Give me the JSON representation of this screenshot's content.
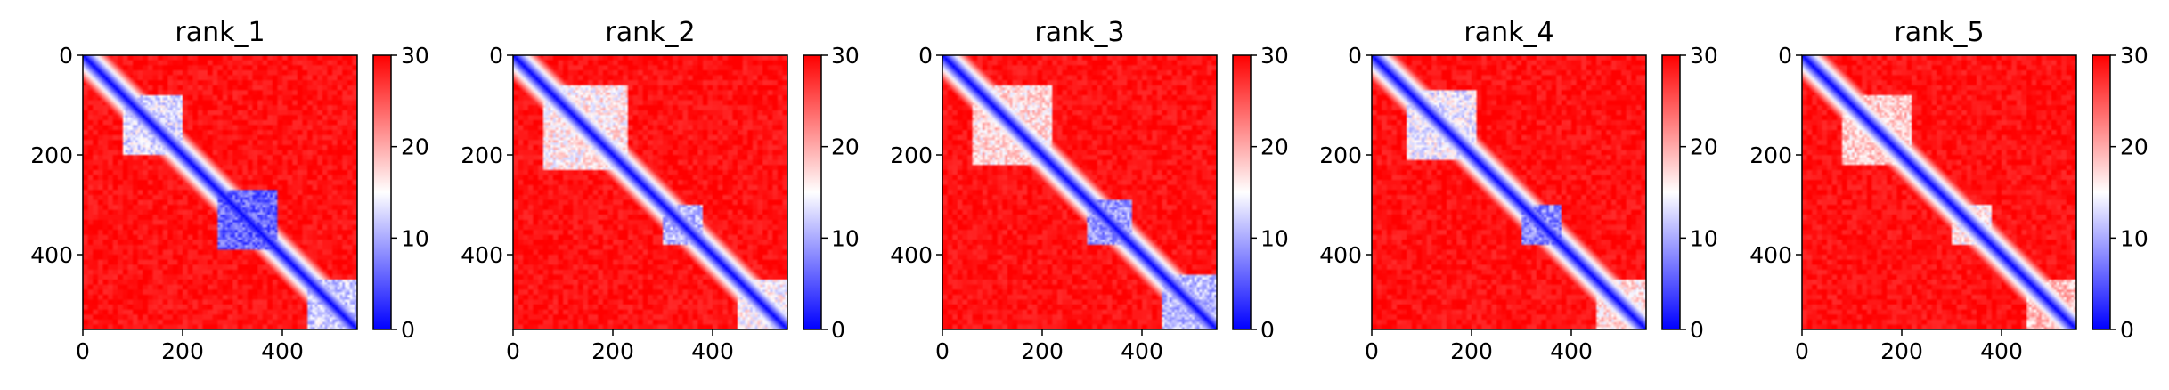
{
  "chart_data": [
    {
      "type": "heatmap",
      "title": "rank_1",
      "xlim": [
        0,
        550
      ],
      "ylim": [
        550,
        0
      ],
      "xticks": [
        "0",
        "200",
        "400"
      ],
      "yticks": [
        "0",
        "200",
        "400"
      ],
      "colorbar": {
        "ticks": [
          "0",
          "10",
          "20",
          "30"
        ],
        "range": [
          0,
          30
        ],
        "colormap": "bwr"
      },
      "features": [
        {
          "from": 80,
          "to": 200,
          "value": 13
        },
        {
          "from": 270,
          "to": 390,
          "value": 6
        },
        {
          "from": 450,
          "to": 550,
          "value": 12
        }
      ]
    },
    {
      "type": "heatmap",
      "title": "rank_2",
      "xlim": [
        0,
        550
      ],
      "ylim": [
        550,
        0
      ],
      "xticks": [
        "0",
        "200",
        "400"
      ],
      "yticks": [
        "0",
        "200",
        "400"
      ],
      "colorbar": {
        "ticks": [
          "0",
          "10",
          "20",
          "30"
        ],
        "range": [
          0,
          30
        ],
        "colormap": "bwr"
      },
      "features": [
        {
          "from": 60,
          "to": 230,
          "value": 16
        },
        {
          "from": 300,
          "to": 380,
          "value": 11
        },
        {
          "from": 450,
          "to": 550,
          "value": 15
        }
      ]
    },
    {
      "type": "heatmap",
      "title": "rank_3",
      "xlim": [
        0,
        550
      ],
      "ylim": [
        550,
        0
      ],
      "xticks": [
        "0",
        "200",
        "400"
      ],
      "yticks": [
        "0",
        "200",
        "400"
      ],
      "colorbar": {
        "ticks": [
          "0",
          "10",
          "20",
          "30"
        ],
        "range": [
          0,
          30
        ],
        "colormap": "bwr"
      },
      "features": [
        {
          "from": 60,
          "to": 220,
          "value": 17
        },
        {
          "from": 290,
          "to": 380,
          "value": 9
        },
        {
          "from": 440,
          "to": 550,
          "value": 11
        }
      ]
    },
    {
      "type": "heatmap",
      "title": "rank_4",
      "xlim": [
        0,
        550
      ],
      "ylim": [
        550,
        0
      ],
      "xticks": [
        "0",
        "200",
        "400"
      ],
      "yticks": [
        "0",
        "200",
        "400"
      ],
      "colorbar": {
        "ticks": [
          "0",
          "10",
          "20",
          "30"
        ],
        "range": [
          0,
          30
        ],
        "colormap": "bwr"
      },
      "features": [
        {
          "from": 70,
          "to": 210,
          "value": 14
        },
        {
          "from": 300,
          "to": 380,
          "value": 8
        },
        {
          "from": 450,
          "to": 550,
          "value": 17
        }
      ]
    },
    {
      "type": "heatmap",
      "title": "rank_5",
      "xlim": [
        0,
        550
      ],
      "ylim": [
        550,
        0
      ],
      "xticks": [
        "0",
        "200",
        "400"
      ],
      "yticks": [
        "0",
        "200",
        "400"
      ],
      "colorbar": {
        "ticks": [
          "0",
          "10",
          "20",
          "30"
        ],
        "range": [
          0,
          30
        ],
        "colormap": "bwr"
      },
      "features": [
        {
          "from": 80,
          "to": 220,
          "value": 18
        },
        {
          "from": 300,
          "to": 380,
          "value": 16
        },
        {
          "from": 450,
          "to": 550,
          "value": 19
        }
      ]
    }
  ],
  "colors": {
    "low": "#0000ff",
    "mid": "#ffffff",
    "high": "#ff0000"
  },
  "background_value": 29,
  "diagonal_value": 0
}
